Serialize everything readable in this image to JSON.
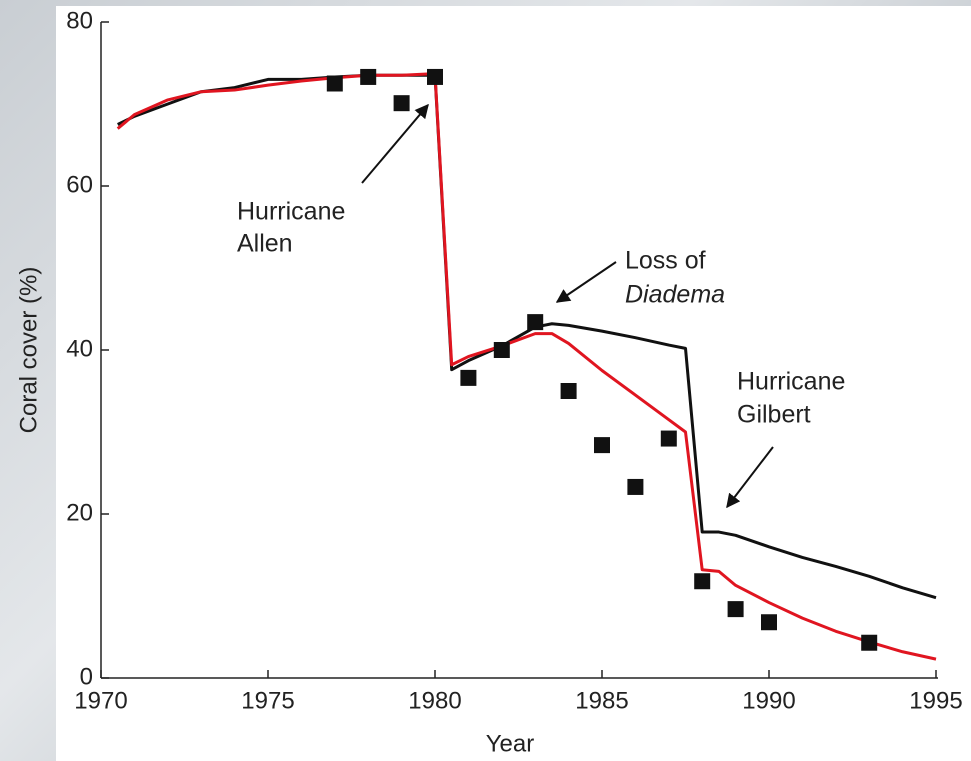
{
  "chart_data": {
    "type": "line",
    "x_label": "Year",
    "y_label": "Coral cover (%)",
    "xlim": [
      1970,
      1995
    ],
    "xticks": [
      1970,
      1975,
      1980,
      1985,
      1990,
      1995
    ],
    "ylim": [
      0,
      80
    ],
    "yticks": [
      0,
      20,
      40,
      60,
      80
    ],
    "series": [
      {
        "mode": "line",
        "color": "#111111",
        "x": [
          1970.5,
          1971,
          1972,
          1973,
          1974,
          1975,
          1976,
          1977,
          1978,
          1979,
          1980,
          1980.5,
          1981,
          1982,
          1983,
          1983.5,
          1984,
          1985,
          1986,
          1987,
          1987.5,
          1988,
          1988.5,
          1989,
          1990,
          1991,
          1992,
          1993,
          1994,
          1995
        ],
        "values": [
          67.5,
          68.5,
          70,
          71.5,
          72,
          73,
          73,
          73.3,
          73.5,
          73.5,
          73.5,
          37.6,
          38.7,
          40.5,
          42.8,
          43.2,
          43,
          42.3,
          41.5,
          40.6,
          40.2,
          17.8,
          17.8,
          17.4,
          16,
          14.7,
          13.6,
          12.4,
          11,
          9.8
        ]
      },
      {
        "mode": "line",
        "color": "#e01520",
        "x": [
          1970.5,
          1971,
          1972,
          1973,
          1974,
          1975,
          1976,
          1977,
          1978,
          1979,
          1980,
          1980.5,
          1981,
          1982,
          1983,
          1983.5,
          1984,
          1985,
          1986,
          1987,
          1987.5,
          1988,
          1988.5,
          1989,
          1990,
          1991,
          1992,
          1993,
          1994,
          1995
        ],
        "values": [
          67,
          68.7,
          70.5,
          71.5,
          71.7,
          72.3,
          72.8,
          73.2,
          73.5,
          73.5,
          73.7,
          38.2,
          39.2,
          40.5,
          42,
          42,
          40.8,
          37.5,
          34.5,
          31.5,
          30,
          13.2,
          13,
          11.3,
          9.2,
          7.3,
          5.7,
          4.4,
          3.2,
          2.3
        ]
      },
      {
        "mode": "markers",
        "color": "#111111",
        "x": [
          1977,
          1978,
          1979,
          1980,
          1981,
          1982,
          1983,
          1984,
          1985,
          1986,
          1987,
          1988,
          1989,
          1990,
          1993
        ],
        "values": [
          72.5,
          73.3,
          70.1,
          73.3,
          36.6,
          40.0,
          43.4,
          35.0,
          28.4,
          23.3,
          29.2,
          11.8,
          8.4,
          6.8,
          4.3
        ]
      }
    ],
    "annotations": [
      {
        "lines": [
          "Hurricane",
          "Allen"
        ]
      },
      {
        "lines": [
          "Loss of",
          "Diadema"
        ]
      },
      {
        "lines": [
          "Hurricane",
          "Gilbert"
        ]
      }
    ]
  }
}
